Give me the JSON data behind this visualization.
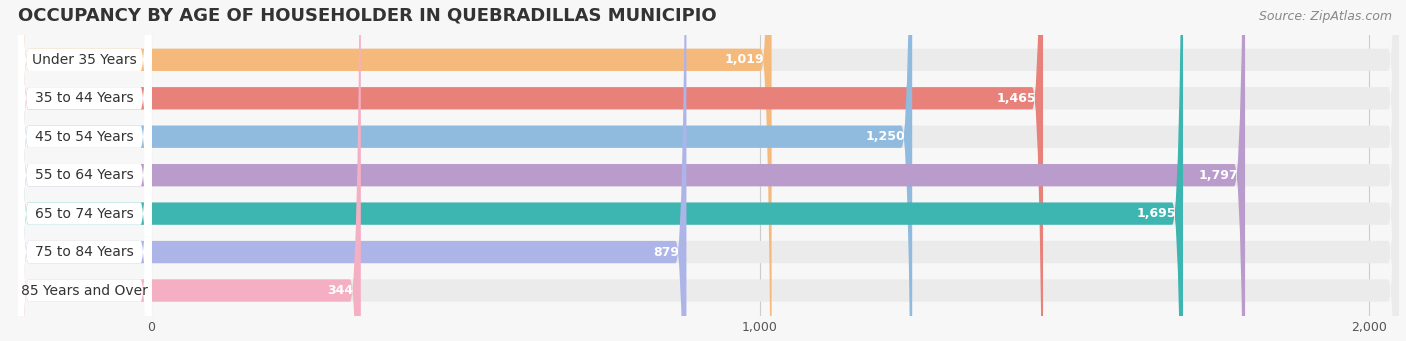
{
  "title": "OCCUPANCY BY AGE OF HOUSEHOLDER IN QUEBRADILLAS MUNICIPIO",
  "source": "Source: ZipAtlas.com",
  "categories": [
    "Under 35 Years",
    "35 to 44 Years",
    "45 to 54 Years",
    "55 to 64 Years",
    "65 to 74 Years",
    "75 to 84 Years",
    "85 Years and Over"
  ],
  "values": [
    1019,
    1465,
    1250,
    1797,
    1695,
    879,
    344
  ],
  "bar_colors": [
    "#f5b97c",
    "#e8817a",
    "#90bade",
    "#b99ccb",
    "#3db5b0",
    "#adb4e8",
    "#f5afc3"
  ],
  "xlim_left": -220,
  "xlim_right": 2050,
  "xticks": [
    0,
    1000,
    2000
  ],
  "xticklabels": [
    "0",
    "1,000",
    "2,000"
  ],
  "background_color": "#f7f7f7",
  "bar_bg_color": "#ebebeb",
  "title_fontsize": 13,
  "source_fontsize": 9,
  "label_fontsize": 10,
  "value_fontsize": 9,
  "bar_height": 0.58
}
